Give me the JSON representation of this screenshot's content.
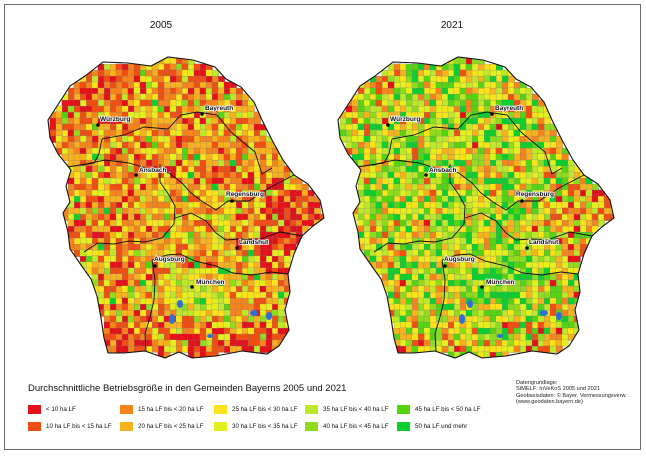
{
  "maps": [
    {
      "year": "2005"
    },
    {
      "year": "2021"
    }
  ],
  "cities": [
    "Bayreuth",
    "Würzburg",
    "Ansbach",
    "Regensburg",
    "Landshut",
    "Augsburg",
    "München"
  ],
  "legend": {
    "title": "Durchschnittliche Betriebsgröße in den Gemeinden Bayerns 2005 und 2021",
    "items": [
      {
        "label": "< 10 ha LF",
        "color": "#e4101a"
      },
      {
        "label": "10 ha LF bis < 15 ha LF",
        "color": "#f04e12"
      },
      {
        "label": "15 ha LF bis < 20 ha LF",
        "color": "#f5841c"
      },
      {
        "label": "20 ha LF bis < 25 ha LF",
        "color": "#f8b21e"
      },
      {
        "label": "25 ha LF bis < 30 ha LF",
        "color": "#fbe219"
      },
      {
        "label": "30 ha LF bis < 35 ha LF",
        "color": "#e3f01e"
      },
      {
        "label": "35 ha LF bis < 40 ha LF",
        "color": "#bfe82a"
      },
      {
        "label": "40 ha LF bis < 45 ha LF",
        "color": "#8fdc1f"
      },
      {
        "label": "45 ha LF bis < 50 ha LF",
        "color": "#55d412"
      },
      {
        "label": "50 ha LF und mehr",
        "color": "#0ccf2f"
      }
    ]
  },
  "source": {
    "lines": [
      "Datengrundlage:",
      "StMELF: InVeKoS 2005 und 2021",
      "Geobasisdaten: © Bayer. Vermessungsverw.",
      "(www.geodaten.bayern.de)"
    ]
  }
}
